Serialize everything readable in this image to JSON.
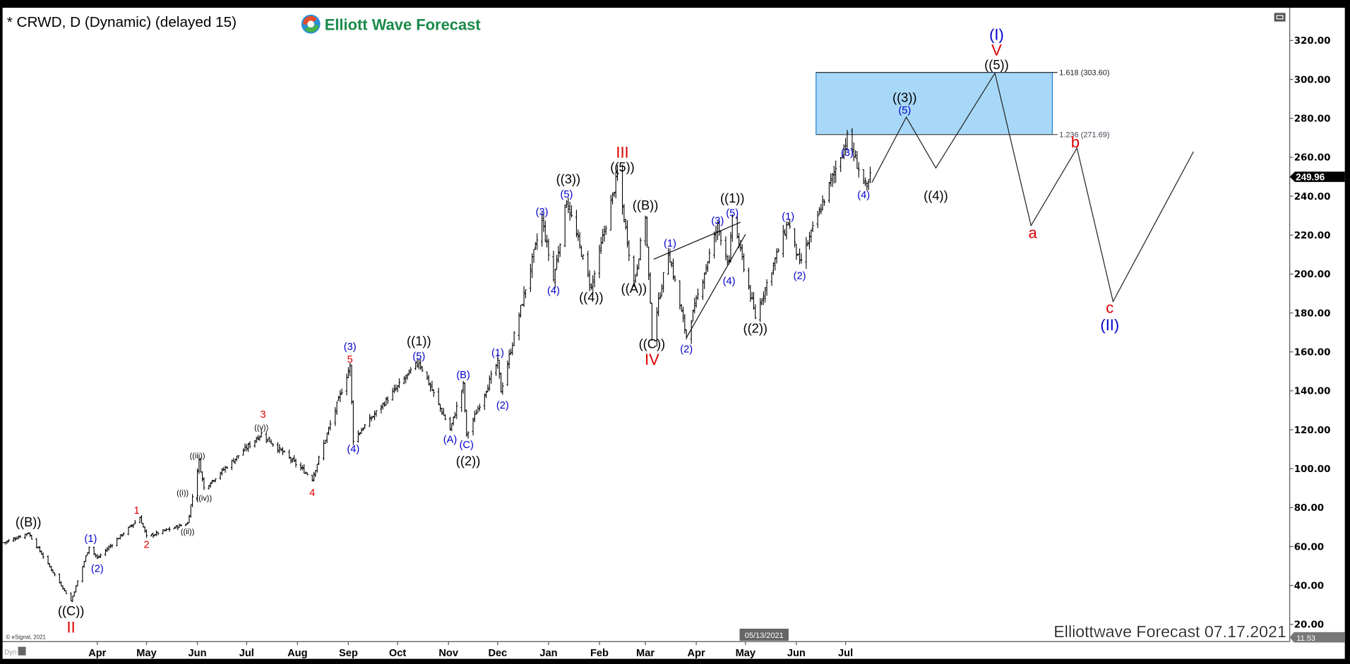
{
  "header": {
    "symbol_title": "* CRWD, D (Dynamic) (delayed 15)",
    "logo_text": "Elliott Wave Forecast"
  },
  "footer": {
    "watermark": "Elliottwave Forecast 07.17.2021",
    "copyright": "© eSignal, 2021",
    "dyn_label": "Dyn",
    "cursor_date": "05/13/2021",
    "bottom_value_tag": "11.53"
  },
  "colors": {
    "wave_black": "#000000",
    "wave_blue": "#0000cc",
    "wave_red": "#dd0000",
    "fib_box_fill": "#a8d8f8",
    "fib_box_stroke": "#1e7fd0",
    "logo_green": "#1a8a4a"
  },
  "chart_data": {
    "type": "ohlc-bar",
    "ticker": "CRWD",
    "interval": "D",
    "ylim": [
      11.53,
      330
    ],
    "yticks": [
      "320.00",
      "300.00",
      "280.00",
      "260.00",
      "240.00",
      "220.00",
      "200.00",
      "180.00",
      "160.00",
      "140.00",
      "120.00",
      "100.00",
      "80.00",
      "60.00",
      "40.00",
      "20.00"
    ],
    "xticks": [
      {
        "label": "Apr",
        "date": "2020-04-01"
      },
      {
        "label": "May",
        "date": "2020-05-01"
      },
      {
        "label": "Jun",
        "date": "2020-06-01"
      },
      {
        "label": "Jul",
        "date": "2020-07-01"
      },
      {
        "label": "Aug",
        "date": "2020-08-01"
      },
      {
        "label": "Sep",
        "date": "2020-09-01"
      },
      {
        "label": "Oct",
        "date": "2020-10-01"
      },
      {
        "label": "Nov",
        "date": "2020-11-01"
      },
      {
        "label": "Dec",
        "date": "2020-12-01"
      },
      {
        "label": "Jan",
        "date": "2021-01-01"
      },
      {
        "label": "Feb",
        "date": "2021-02-01"
      },
      {
        "label": "Mar",
        "date": "2021-03-01"
      },
      {
        "label": "Apr",
        "date": "2021-04-01"
      },
      {
        "label": "May",
        "date": "2021-05-01"
      },
      {
        "label": "Jun",
        "date": "2021-06-01"
      },
      {
        "label": "Jul",
        "date": "2021-07-01"
      }
    ],
    "last_price": "249.96",
    "price_swings": [
      {
        "date": "2020-02-04",
        "price": 62
      },
      {
        "date": "2020-02-19",
        "price": 67
      },
      {
        "date": "2020-03-16",
        "price": 32
      },
      {
        "date": "2020-03-27",
        "price": 60
      },
      {
        "date": "2020-04-01",
        "price": 54
      },
      {
        "date": "2020-04-27",
        "price": 75
      },
      {
        "date": "2020-05-01",
        "price": 65
      },
      {
        "date": "2020-05-26",
        "price": 72
      },
      {
        "date": "2020-06-02",
        "price": 104
      },
      {
        "date": "2020-06-05",
        "price": 90
      },
      {
        "date": "2020-07-10",
        "price": 118
      },
      {
        "date": "2020-08-10",
        "price": 95
      },
      {
        "date": "2020-09-02",
        "price": 153
      },
      {
        "date": "2020-09-04",
        "price": 115
      },
      {
        "date": "2020-10-14",
        "price": 155
      },
      {
        "date": "2020-11-02",
        "price": 120
      },
      {
        "date": "2020-11-10",
        "price": 143
      },
      {
        "date": "2020-11-12",
        "price": 117
      },
      {
        "date": "2020-12-01",
        "price": 155
      },
      {
        "date": "2020-12-03",
        "price": 140
      },
      {
        "date": "2020-12-28",
        "price": 228
      },
      {
        "date": "2021-01-04",
        "price": 197
      },
      {
        "date": "2021-01-12",
        "price": 238
      },
      {
        "date": "2021-01-27",
        "price": 193
      },
      {
        "date": "2021-02-12",
        "price": 251
      },
      {
        "date": "2021-02-22",
        "price": 195
      },
      {
        "date": "2021-03-01",
        "price": 230
      },
      {
        "date": "2021-03-05",
        "price": 168
      },
      {
        "date": "2021-03-15",
        "price": 212
      },
      {
        "date": "2021-03-26",
        "price": 168
      },
      {
        "date": "2021-04-14",
        "price": 225
      },
      {
        "date": "2021-04-21",
        "price": 205
      },
      {
        "date": "2021-04-23",
        "price": 230
      },
      {
        "date": "2021-05-07",
        "price": 178
      },
      {
        "date": "2021-05-27",
        "price": 227
      },
      {
        "date": "2021-06-03",
        "price": 205
      },
      {
        "date": "2021-07-02",
        "price": 270
      },
      {
        "date": "2021-07-14",
        "price": 243
      },
      {
        "date": "2021-07-16",
        "price": 249.96
      }
    ],
    "projection_path": [
      {
        "date": "2021-07-17",
        "price": 247
      },
      {
        "date": "2021-08-07",
        "price": 280.6
      },
      {
        "date": "2021-08-25",
        "price": 254.5
      },
      {
        "date": "2021-09-30",
        "price": 303.2
      },
      {
        "date": "2021-10-22",
        "price": 224.9
      },
      {
        "date": "2021-11-19",
        "price": 264.7
      },
      {
        "date": "2021-12-11",
        "price": 185.9
      },
      {
        "date": "2022-01-29",
        "price": 262.9
      }
    ],
    "wedge_lines": [
      [
        {
          "date": "2021-03-06",
          "price": 207.6
        },
        {
          "date": "2021-04-28",
          "price": 226.6
        }
      ],
      [
        {
          "date": "2021-03-26",
          "price": 167.3
        },
        {
          "date": "2021-05-01",
          "price": 220.4
        }
      ]
    ],
    "fib_zone": {
      "start": "2021-06-13",
      "end": "2021-11-04",
      "upper": {
        "ratio": "1.618",
        "price": 303.6,
        "label": "1.618 (303.60)"
      },
      "lower": {
        "ratio": "1.236",
        "price": 271.69,
        "label": "1.236 (271.69)"
      }
    },
    "wave_labels": [
      {
        "text": "((B))",
        "color": "black",
        "date": "2020-02-19",
        "price": 72.7,
        "size": "l"
      },
      {
        "text": "((C))",
        "color": "black",
        "date": "2020-03-16",
        "price": 27,
        "size": "l"
      },
      {
        "text": "II",
        "color": "red",
        "date": "2020-03-16",
        "price": 18.5,
        "size": "xl"
      },
      {
        "text": "(1)",
        "color": "blue",
        "date": "2020-03-28",
        "price": 64.2,
        "size": "m"
      },
      {
        "text": "(2)",
        "color": "blue",
        "date": "2020-04-01",
        "price": 48.8,
        "size": "m"
      },
      {
        "text": "1",
        "color": "red",
        "date": "2020-04-25",
        "price": 78.8,
        "size": "m"
      },
      {
        "text": "2",
        "color": "red",
        "date": "2020-05-01",
        "price": 61.2,
        "size": "m"
      },
      {
        "text": "((i))",
        "color": "black",
        "date": "2020-05-23",
        "price": 87.7,
        "size": "s"
      },
      {
        "text": "((ii))",
        "color": "black",
        "date": "2020-05-26",
        "price": 67.8,
        "size": "s"
      },
      {
        "text": "((iii))",
        "color": "black",
        "date": "2020-06-01",
        "price": 106.7,
        "size": "s"
      },
      {
        "text": "((iv))",
        "color": "black",
        "date": "2020-06-05",
        "price": 85,
        "size": "s"
      },
      {
        "text": "((v))",
        "color": "black",
        "date": "2020-07-10",
        "price": 121.3,
        "size": "s"
      },
      {
        "text": "3",
        "color": "red",
        "date": "2020-07-11",
        "price": 128,
        "size": "m"
      },
      {
        "text": "4",
        "color": "red",
        "date": "2020-08-10",
        "price": 87.7,
        "size": "m"
      },
      {
        "text": "(3)",
        "color": "blue",
        "date": "2020-09-02",
        "price": 162.9,
        "size": "m"
      },
      {
        "text": "5",
        "color": "red",
        "date": "2020-09-02",
        "price": 156.3,
        "size": "m"
      },
      {
        "text": "(4)",
        "color": "blue",
        "date": "2020-09-04",
        "price": 110.3,
        "size": "m"
      },
      {
        "text": "((1))",
        "color": "black",
        "date": "2020-10-14",
        "price": 165.6,
        "size": "l"
      },
      {
        "text": "(5)",
        "color": "blue",
        "date": "2020-10-14",
        "price": 158,
        "size": "m"
      },
      {
        "text": "(A)",
        "color": "blue",
        "date": "2020-11-02",
        "price": 115.1,
        "size": "m"
      },
      {
        "text": "(B)",
        "color": "blue",
        "date": "2020-11-10",
        "price": 148.3,
        "size": "m"
      },
      {
        "text": "(C)",
        "color": "blue",
        "date": "2020-11-12",
        "price": 112.5,
        "size": "m"
      },
      {
        "text": "((2))",
        "color": "black",
        "date": "2020-11-13",
        "price": 104,
        "size": "l"
      },
      {
        "text": "(1)",
        "color": "blue",
        "date": "2020-12-01",
        "price": 159.8,
        "size": "m"
      },
      {
        "text": "(2)",
        "color": "blue",
        "date": "2020-12-04",
        "price": 132.8,
        "size": "m"
      },
      {
        "text": "(3)",
        "color": "blue",
        "date": "2020-12-28",
        "price": 232,
        "size": "m"
      },
      {
        "text": "(4)",
        "color": "blue",
        "date": "2021-01-04",
        "price": 191.7,
        "size": "m"
      },
      {
        "text": "((3))",
        "color": "black",
        "date": "2021-01-13",
        "price": 248.8,
        "size": "l"
      },
      {
        "text": "(5)",
        "color": "blue",
        "date": "2021-01-12",
        "price": 241.2,
        "size": "m"
      },
      {
        "text": "((4))",
        "color": "black",
        "date": "2021-01-27",
        "price": 188.1,
        "size": "l"
      },
      {
        "text": "III",
        "color": "red",
        "date": "2021-02-15",
        "price": 262.5,
        "size": "xl"
      },
      {
        "text": "((5))",
        "color": "black",
        "date": "2021-02-15",
        "price": 255,
        "size": "l"
      },
      {
        "text": "((A))",
        "color": "black",
        "date": "2021-02-22",
        "price": 192.6,
        "size": "l"
      },
      {
        "text": "((B))",
        "color": "black",
        "date": "2021-03-01",
        "price": 235.5,
        "size": "l"
      },
      {
        "text": "((C))",
        "color": "black",
        "date": "2021-03-05",
        "price": 164.2,
        "size": "l"
      },
      {
        "text": "IV",
        "color": "red",
        "date": "2021-03-05",
        "price": 156.2,
        "size": "xl"
      },
      {
        "text": "(1)",
        "color": "blue",
        "date": "2021-03-16",
        "price": 216,
        "size": "m"
      },
      {
        "text": "(2)",
        "color": "blue",
        "date": "2021-03-26",
        "price": 161.6,
        "size": "m"
      },
      {
        "text": "(3)",
        "color": "blue",
        "date": "2021-04-14",
        "price": 227.5,
        "size": "m"
      },
      {
        "text": "((1))",
        "color": "black",
        "date": "2021-04-23",
        "price": 239,
        "size": "l"
      },
      {
        "text": "(5)",
        "color": "blue",
        "date": "2021-04-23",
        "price": 231.5,
        "size": "m"
      },
      {
        "text": "(4)",
        "color": "blue",
        "date": "2021-04-21",
        "price": 196.5,
        "size": "m"
      },
      {
        "text": "((2))",
        "color": "black",
        "date": "2021-05-07",
        "price": 172.2,
        "size": "l"
      },
      {
        "text": "(1)",
        "color": "blue",
        "date": "2021-05-27",
        "price": 229.7,
        "size": "m"
      },
      {
        "text": "(2)",
        "color": "blue",
        "date": "2021-06-03",
        "price": 199.2,
        "size": "m"
      },
      {
        "text": "(3)",
        "color": "blue",
        "date": "2021-07-02",
        "price": 262.5,
        "size": "m"
      },
      {
        "text": "(4)",
        "color": "blue",
        "date": "2021-07-12",
        "price": 240.8,
        "size": "m"
      },
      {
        "text": "((3))",
        "color": "black",
        "date": "2021-08-06",
        "price": 290.8,
        "size": "l"
      },
      {
        "text": "(5)",
        "color": "blue",
        "date": "2021-08-06",
        "price": 284.2,
        "size": "m"
      },
      {
        "text": "((4))",
        "color": "black",
        "date": "2021-08-25",
        "price": 240.4,
        "size": "l"
      },
      {
        "text": "(I)",
        "color": "blue",
        "date": "2021-10-01",
        "price": 323.1,
        "size": "xl"
      },
      {
        "text": "V",
        "color": "red",
        "date": "2021-10-01",
        "price": 315.1,
        "size": "xl"
      },
      {
        "text": "((5))",
        "color": "black",
        "date": "2021-10-01",
        "price": 307.6,
        "size": "l"
      },
      {
        "text": "a",
        "color": "red",
        "date": "2021-10-23",
        "price": 221.3,
        "size": "xl"
      },
      {
        "text": "b",
        "color": "red",
        "date": "2021-11-18",
        "price": 267.8,
        "size": "xl"
      },
      {
        "text": "c",
        "color": "red",
        "date": "2021-12-09",
        "price": 182.8,
        "size": "xl"
      },
      {
        "text": "(II)",
        "color": "blue",
        "date": "2021-12-09",
        "price": 174,
        "size": "xl"
      }
    ]
  }
}
